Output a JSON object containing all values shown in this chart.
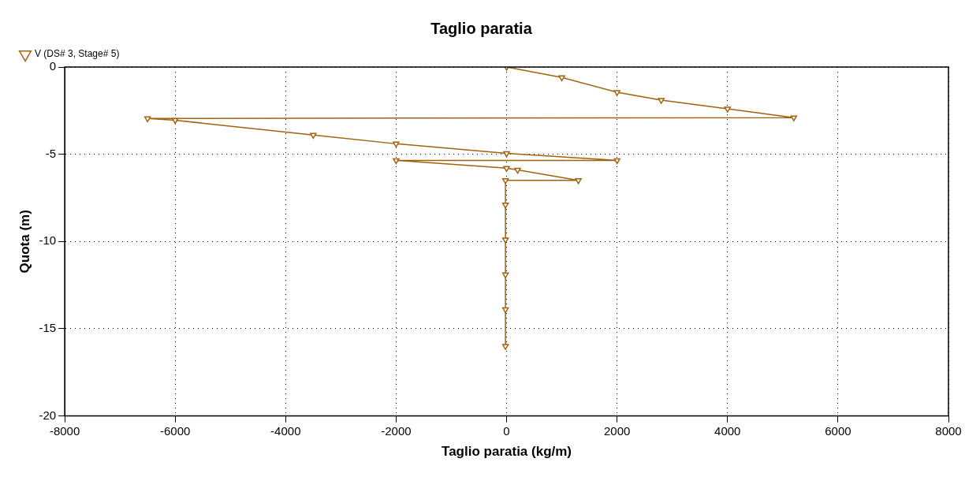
{
  "chart_data": {
    "type": "line",
    "title": "Taglio paratia",
    "xlabel": "Taglio paratia (kg/m)",
    "ylabel": "Quota (m)",
    "x": [
      0,
      1000,
      2000,
      2800,
      4000,
      5200,
      -6500,
      -6000,
      -3500,
      -2000,
      0,
      2000,
      -2000,
      0,
      200,
      1300,
      -20,
      -20,
      -20,
      -20,
      -20,
      -20
    ],
    "series": [
      {
        "name": "V (DS# 3, Stage# 5)",
        "color": "#a0620f",
        "values": [
          0,
          -0.6,
          -1.45,
          -1.9,
          -2.4,
          -2.9,
          -2.95,
          -3.05,
          -3.9,
          -4.4,
          -4.95,
          -5.35,
          -5.35,
          -5.8,
          -5.9,
          -6.5,
          -6.5,
          -7.9,
          -9.9,
          -11.9,
          -13.9,
          -16
        ]
      }
    ],
    "xlim": [
      -8000,
      8000
    ],
    "xticks": [
      -8000,
      -6000,
      -4000,
      -2000,
      0,
      2000,
      4000,
      6000,
      8000
    ],
    "ylim": [
      -20,
      0
    ],
    "yticks": [
      -20,
      -15,
      -10,
      -5,
      0
    ],
    "grid": true,
    "legend": "top left",
    "marker": "triangle",
    "line_style": "solid"
  }
}
